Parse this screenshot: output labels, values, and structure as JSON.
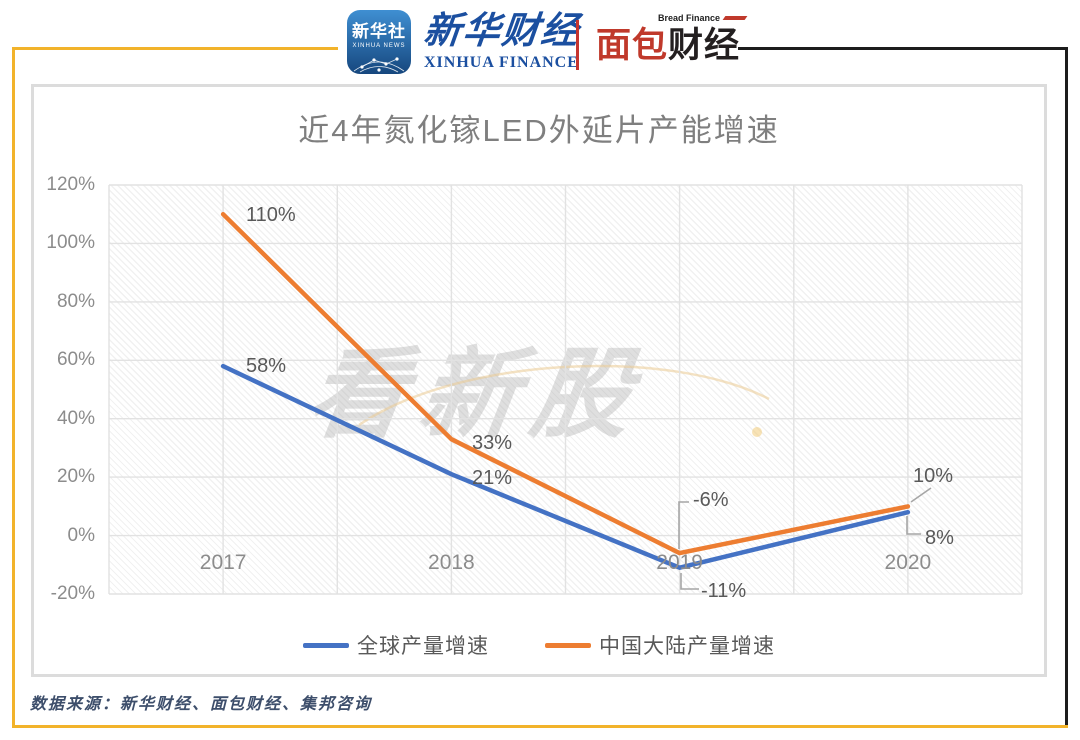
{
  "header": {
    "xinhua_news_badge": {
      "name": "新华社",
      "sub": "XINHUA NEWS"
    },
    "xinhua_finance": {
      "name": "新华财经",
      "sub": "XINHUA FINANCE"
    },
    "bread_finance": {
      "name_part1": "面包",
      "name_part2": "财经",
      "sub": "Bread Finance"
    }
  },
  "chart_data": {
    "type": "line",
    "title": "近4年氮化镓LED外延片产能增速",
    "categories": [
      "2017",
      "2018",
      "2019",
      "2020"
    ],
    "series": [
      {
        "name": "全球产量增速",
        "color": "#4472c4",
        "values": [
          58,
          21,
          -11,
          8
        ],
        "labels": [
          "58%",
          "21%",
          "-11%",
          "8%"
        ]
      },
      {
        "name": "中国大陆产量增速",
        "color": "#ed7d31",
        "values": [
          110,
          33,
          -6,
          10
        ],
        "labels": [
          "110%",
          "33%",
          "-6%",
          "10%"
        ]
      }
    ],
    "ylim": [
      -20,
      120
    ],
    "ytick_step": 20,
    "ytick_labels": [
      "120%",
      "100%",
      "80%",
      "60%",
      "40%",
      "20%",
      "0%",
      "-20%"
    ],
    "grid": true,
    "legend_position": "bottom"
  },
  "watermark": {
    "text": "看新股"
  },
  "footer": {
    "source": "数据来源：新华财经、面包财经、集邦咨询"
  },
  "colors": {
    "frame_yellow": "#f2b32a",
    "frame_black": "#1c1c1c",
    "divider_red": "#c6352f",
    "brand_blue": "#1b4fa0",
    "brand_red": "#c0392b",
    "badge_blue1": "#3f8fd2",
    "badge_blue2": "#16477e",
    "title_gray": "#7f7f7f",
    "axis_gray": "#8c8c8c",
    "label_gray": "#595959",
    "grid_gray": "#e2e2e2",
    "leader_gray": "#a6a6a6",
    "footer_navy": "#3d4e6b"
  }
}
